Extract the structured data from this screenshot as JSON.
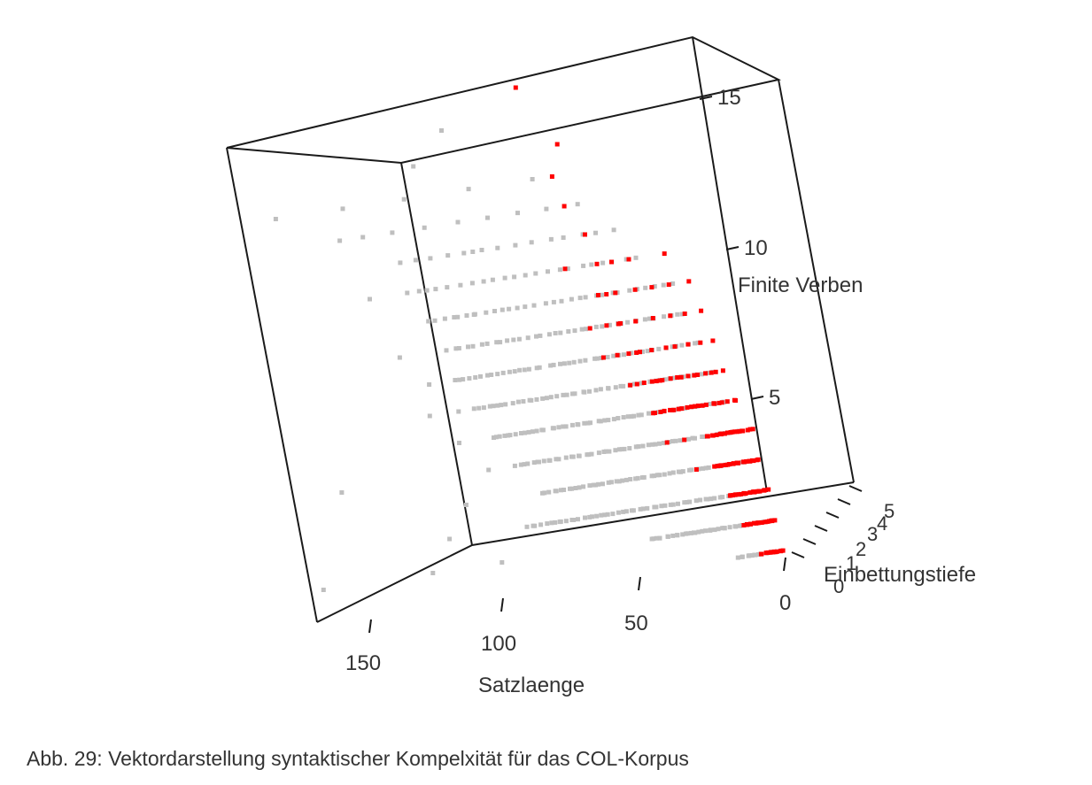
{
  "figure": {
    "caption": "Abb. 29: Vektordarstellung syntaktischer Kompelxität für das COL-Korpus"
  },
  "chart_data": {
    "type": "scatter",
    "projection": "3d",
    "axes": {
      "x": {
        "label": "Satzlaenge",
        "ticks": [
          "0",
          "50",
          "100",
          "150"
        ]
      },
      "y": {
        "label": "Einbettungstiefe",
        "ticks": [
          "0",
          "1",
          "2",
          "3",
          "4",
          "5"
        ]
      },
      "z": {
        "label": "Finite Verben",
        "ticks": [
          "5",
          "10",
          "15"
        ]
      }
    },
    "colors": {
      "primary": "#ff0000",
      "secondary": "#bfbfbf",
      "frame": "#1a1a1a",
      "text": "#333333"
    },
    "series": [
      {
        "color": "#bfbfbf",
        "points": [
          [
            158,
            0,
            1
          ],
          [
            148,
            0,
            13
          ],
          [
            145,
            0,
            4
          ],
          [
            128,
            0,
            12
          ],
          [
            122,
            0,
            10
          ],
          [
            120,
            0,
            1
          ],
          [
            116,
            0,
            8
          ],
          [
            112,
            0,
            2
          ],
          [
            110,
            0,
            6
          ],
          [
            108,
            0,
            7
          ],
          [
            104,
            0,
            3
          ],
          [
            102,
            0,
            5
          ],
          [
            100,
            0,
            6
          ],
          [
            98,
            0,
            14
          ],
          [
            96,
            0,
            1
          ],
          [
            94,
            0,
            4
          ],
          [
            90,
            0,
            5
          ],
          [
            88,
            0,
            9
          ],
          [
            86,
            0,
            15
          ],
          [
            84,
            0,
            11
          ]
        ],
        "rows": [
          {
            "z": 0,
            "x_min": 3,
            "x_max": 16,
            "n": 16
          },
          {
            "z": 1,
            "x_min": 3,
            "x_max": 45,
            "n": 40
          },
          {
            "z": 2,
            "x_min": 5,
            "x_max": 85,
            "n": 55
          },
          {
            "z": 3,
            "x_min": 6,
            "x_max": 78,
            "n": 55
          },
          {
            "z": 4,
            "x_min": 8,
            "x_max": 85,
            "n": 55
          },
          {
            "z": 5,
            "x_min": 10,
            "x_max": 90,
            "n": 55
          },
          {
            "z": 6,
            "x_min": 12,
            "x_max": 95,
            "n": 50
          },
          {
            "z": 7,
            "x_min": 15,
            "x_max": 100,
            "n": 45
          },
          {
            "z": 8,
            "x_min": 18,
            "x_max": 100,
            "n": 36
          },
          {
            "z": 9,
            "x_min": 20,
            "x_max": 105,
            "n": 30
          },
          {
            "z": 10,
            "x_min": 30,
            "x_max": 110,
            "n": 22
          },
          {
            "z": 11,
            "x_min": 35,
            "x_max": 110,
            "n": 14
          },
          {
            "z": 12,
            "x_min": 45,
            "x_max": 120,
            "n": 8
          },
          {
            "z": 13,
            "x_min": 60,
            "x_max": 125,
            "n": 4
          }
        ]
      },
      {
        "color": "#ff0000",
        "points": [
          [
            30,
            0,
            6
          ],
          [
            28,
            0,
            5
          ],
          [
            32,
            0,
            4
          ],
          [
            26,
            0,
            4
          ],
          [
            24,
            0,
            3
          ],
          [
            36,
            0,
            7
          ],
          [
            40,
            0,
            8
          ],
          [
            42,
            0,
            9
          ],
          [
            38,
            0,
            10
          ],
          [
            45,
            0,
            11
          ],
          [
            50,
            0,
            12
          ],
          [
            52,
            0,
            13
          ],
          [
            48,
            0,
            14
          ],
          [
            58,
            0,
            16
          ],
          [
            34,
            0,
            5
          ]
        ],
        "rows": [
          {
            "z": 0,
            "x_min": 1,
            "x_max": 8,
            "n": 14
          },
          {
            "z": 1,
            "x_min": 1,
            "x_max": 12,
            "n": 18
          },
          {
            "z": 2,
            "x_min": 2,
            "x_max": 15,
            "n": 22
          },
          {
            "z": 3,
            "x_min": 3,
            "x_max": 18,
            "n": 22
          },
          {
            "z": 4,
            "x_min": 3,
            "x_max": 18,
            "n": 22
          },
          {
            "z": 5,
            "x_min": 6,
            "x_max": 34,
            "n": 20
          },
          {
            "z": 6,
            "x_min": 8,
            "x_max": 40,
            "n": 16
          },
          {
            "z": 7,
            "x_min": 10,
            "x_max": 48,
            "n": 10
          },
          {
            "z": 8,
            "x_min": 12,
            "x_max": 50,
            "n": 8
          },
          {
            "z": 9,
            "x_min": 14,
            "x_max": 45,
            "n": 6
          },
          {
            "z": 10,
            "x_min": 20,
            "x_max": 55,
            "n": 4
          }
        ]
      }
    ]
  }
}
